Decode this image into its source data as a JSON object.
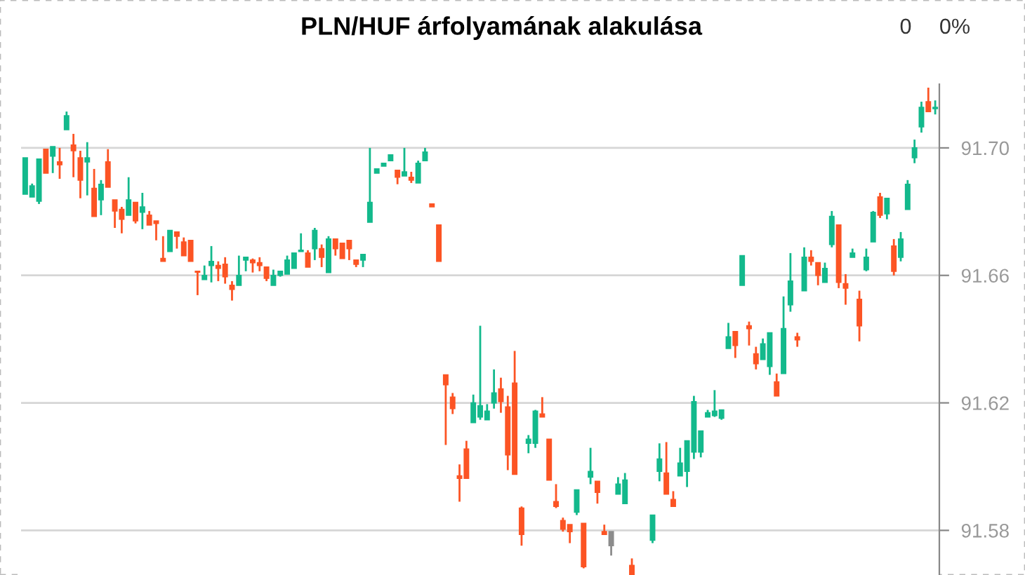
{
  "chart_data": {
    "type": "candlestick",
    "title": "PLN/HUF árfolyamának alakulása",
    "annotations": [
      "0",
      "0%"
    ],
    "categories": [
      null,
      null,
      null,
      null,
      null,
      null,
      null,
      null,
      null,
      null,
      null,
      null,
      null,
      null,
      null,
      null,
      null,
      null,
      null,
      null,
      null,
      null,
      null,
      null,
      null,
      null,
      null,
      null,
      null,
      null,
      null,
      null,
      null,
      null,
      null,
      null,
      null,
      null,
      null,
      null,
      null,
      null,
      null,
      null,
      null,
      null,
      null,
      null,
      null,
      null,
      null,
      null,
      null,
      null,
      null,
      null,
      null,
      null,
      null,
      null,
      null,
      null,
      null,
      null,
      null,
      null,
      null,
      null,
      null,
      null,
      null,
      null,
      null,
      null,
      null,
      null,
      null,
      null,
      null,
      null,
      null,
      null,
      null,
      null,
      null,
      null,
      null,
      null,
      null,
      null,
      null,
      null,
      null,
      null,
      null,
      null,
      null,
      null,
      null,
      null,
      null,
      null,
      null,
      null,
      null,
      null,
      null,
      null,
      null,
      null,
      null,
      null,
      null,
      null,
      null,
      null,
      null,
      null,
      null,
      null,
      null,
      null,
      null,
      null,
      null,
      null,
      null,
      null,
      null,
      null,
      null,
      null,
      null
    ],
    "ohlc": [
      [
        91.6855,
        91.6969,
        91.6855,
        91.6969
      ],
      [
        91.6846,
        91.6888,
        91.6846,
        91.6881
      ],
      [
        91.6833,
        91.6965,
        91.6824,
        91.6965
      ],
      [
        91.6996,
        91.6996,
        91.6921,
        91.6921
      ],
      [
        91.6974,
        91.7004,
        91.6921,
        91.7004
      ],
      [
        91.6956,
        91.7,
        91.6903,
        91.6947
      ],
      [
        91.7057,
        91.7114,
        91.7057,
        91.7101
      ],
      [
        91.7009,
        91.7044,
        91.6908,
        91.6991
      ],
      [
        91.6969,
        91.6991,
        91.6842,
        91.6899
      ],
      [
        91.6956,
        91.7018,
        91.6851,
        91.6969
      ],
      [
        91.6873,
        91.6934,
        91.6785,
        91.6785
      ],
      [
        91.6837,
        91.6899,
        91.6789,
        91.6886
      ],
      [
        91.6956,
        91.6996,
        91.6877,
        91.6877
      ],
      [
        91.6837,
        91.6837,
        91.6749,
        91.6802
      ],
      [
        91.6807,
        91.6815,
        91.6732,
        91.6776
      ],
      [
        91.6789,
        91.6908,
        91.6789,
        91.6837
      ],
      [
        91.6829,
        91.6829,
        91.6763,
        91.6771
      ],
      [
        91.6798,
        91.6859,
        91.6745,
        91.6815
      ],
      [
        91.6789,
        91.6802,
        91.6758,
        91.6758
      ],
      [
        91.6771,
        91.6771,
        91.671,
        91.6763
      ],
      [
        91.6653,
        91.6723,
        91.6644,
        91.6644
      ],
      [
        91.6675,
        91.6741,
        91.6675,
        91.6741
      ],
      [
        91.6736,
        91.6736,
        91.6684,
        91.6723
      ],
      [
        91.6705,
        91.6719,
        91.6662,
        91.6662
      ],
      [
        91.671,
        91.671,
        91.6644,
        91.6644
      ],
      [
        91.6613,
        91.6613,
        91.6538,
        91.661
      ],
      [
        91.6587,
        91.6631,
        91.6587,
        91.66
      ],
      [
        91.6631,
        91.6692,
        91.6578,
        91.6644
      ],
      [
        91.6631,
        91.6644,
        91.6582,
        91.6622
      ],
      [
        91.6635,
        91.6657,
        91.6574,
        91.6596
      ],
      [
        91.6569,
        91.6582,
        91.6521,
        91.6556
      ],
      [
        91.6569,
        91.6662,
        91.6569,
        91.66
      ],
      [
        91.6648,
        91.6657,
        91.6613,
        91.6657
      ],
      [
        91.6648,
        91.6653,
        91.6609,
        91.664
      ],
      [
        91.664,
        91.6657,
        91.6613,
        91.6631
      ],
      [
        91.6626,
        91.6626,
        91.6582,
        91.6591
      ],
      [
        91.6569,
        91.6618,
        91.6569,
        91.66
      ],
      [
        91.66,
        91.6613,
        91.6596,
        91.6613
      ],
      [
        91.6604,
        91.6662,
        91.6604,
        91.6648
      ],
      [
        91.6622,
        91.667,
        91.6622,
        91.667
      ],
      [
        91.6675,
        91.6732,
        91.6675,
        91.6679
      ],
      [
        91.667,
        91.6679,
        91.6626,
        91.6626
      ],
      [
        91.6684,
        91.6749,
        91.6648,
        91.6741
      ],
      [
        91.6684,
        91.6697,
        91.6626,
        91.6657
      ],
      [
        91.6609,
        91.6723,
        91.6609,
        91.6714
      ],
      [
        91.6714,
        91.6714,
        91.6662,
        91.6684
      ],
      [
        91.6701,
        91.6701,
        91.6653,
        91.6653
      ],
      [
        91.671,
        91.671,
        91.6648,
        91.6684
      ],
      [
        91.6648,
        91.6648,
        91.6626,
        91.6635
      ],
      [
        91.6648,
        91.6666,
        91.6626,
        91.6666
      ],
      [
        91.6767,
        91.7,
        91.6767,
        91.6829
      ],
      [
        91.6921,
        91.6934,
        91.6921,
        91.6934
      ],
      [
        91.6943,
        91.6952,
        91.6943,
        91.6952
      ],
      [
        91.696,
        91.6978,
        91.696,
        91.6978
      ],
      [
        91.693,
        91.693,
        91.6886,
        91.6908
      ],
      [
        91.6912,
        91.7,
        91.6912,
        91.6925
      ],
      [
        91.6908,
        91.6925,
        91.689,
        91.6899
      ],
      [
        91.689,
        91.696,
        91.689,
        91.6952
      ],
      [
        91.696,
        91.7,
        91.696,
        91.6987
      ],
      [
        91.6824,
        91.6824,
        91.6815,
        91.6815
      ],
      [
        91.6758,
        91.6758,
        91.6644,
        91.6644
      ],
      [
        91.6288,
        91.6288,
        91.6068,
        91.6257
      ],
      [
        91.6218,
        91.6231,
        91.6165,
        91.6182
      ],
      [
        91.5971,
        91.6007,
        91.589,
        91.5963
      ],
      [
        91.6055,
        91.6081,
        91.5963,
        91.5963
      ],
      [
        91.6138,
        91.6226,
        91.6138,
        91.62
      ],
      [
        91.6156,
        91.6442,
        91.6147,
        91.6191
      ],
      [
        91.6147,
        91.6196,
        91.6147,
        91.6174
      ],
      [
        91.62,
        91.6305,
        91.6182,
        91.6231
      ],
      [
        91.6244,
        91.6279,
        91.6169,
        91.6204
      ],
      [
        91.6187,
        91.6222,
        91.5989,
        91.6037
      ],
      [
        91.6262,
        91.6363,
        91.5976,
        91.5976
      ],
      [
        91.587,
        91.5875,
        91.5752,
        91.5787
      ],
      [
        91.6073,
        91.6099,
        91.6042,
        91.6086
      ],
      [
        91.6073,
        91.6178,
        91.6059,
        91.6174
      ],
      [
        91.6165,
        91.6218,
        91.6156,
        91.6156
      ],
      [
        91.6086,
        91.6086,
        91.5958,
        91.5958
      ],
      [
        91.589,
        91.5945,
        91.587,
        91.5875
      ],
      [
        91.5831,
        91.584,
        91.5796,
        91.5804
      ],
      [
        91.5818,
        91.5818,
        91.576,
        91.5796
      ],
      [
        91.5857,
        91.5927,
        91.5848,
        91.5927
      ],
      [
        91.5822,
        91.5822,
        91.5681,
        91.5686
      ],
      [
        91.5967,
        91.6059,
        91.5945,
        91.5985
      ],
      [
        91.5954,
        91.5954,
        91.5884,
        91.5919
      ],
      [
        91.5796,
        91.5818,
        91.5787,
        91.5787
      ],
      [
        91.5796,
        91.5796,
        91.5721,
        91.5752
      ],
      [
        91.5914,
        91.5967,
        91.5914,
        91.5945
      ],
      [
        91.5884,
        91.598,
        91.5884,
        91.5958
      ],
      [
        91.569,
        91.5712,
        91.5662,
        91.5662
      ],
      null,
      null,
      [
        91.5769,
        91.5848,
        91.576,
        91.5848
      ],
      [
        91.5985,
        91.6073,
        91.5954,
        91.6024
      ],
      [
        91.598,
        91.6077,
        91.5914,
        91.5914
      ],
      [
        91.5897,
        91.5923,
        91.5875,
        91.5875
      ],
      [
        91.5971,
        91.6059,
        91.5971,
        91.6011
      ],
      [
        91.5985,
        91.6081,
        91.5936,
        91.6081
      ],
      [
        91.6046,
        91.6222,
        91.6024,
        91.6204
      ],
      [
        91.6046,
        91.6112,
        91.6029,
        91.6112
      ],
      [
        91.6156,
        91.6178,
        91.6156,
        91.6169
      ],
      [
        91.616,
        91.624,
        91.6156,
        91.6174
      ],
      [
        91.6152,
        91.6178,
        91.6147,
        91.6178
      ],
      [
        91.6371,
        91.6451,
        91.6371,
        91.6407
      ],
      [
        91.6424,
        91.6424,
        91.6341,
        91.638
      ],
      [
        91.6569,
        91.6662,
        91.6569,
        91.6662
      ],
      [
        91.6442,
        91.6455,
        91.638,
        91.6433
      ],
      [
        91.6354,
        91.6376,
        91.6305,
        91.6323
      ],
      [
        91.6336,
        91.6402,
        91.6336,
        91.6385
      ],
      [
        91.6314,
        91.642,
        91.6288,
        91.642
      ],
      [
        91.6266,
        91.6292,
        91.6222,
        91.6222
      ],
      [
        91.6292,
        91.6534,
        91.6292,
        91.6433
      ],
      [
        91.6508,
        91.667,
        91.6486,
        91.6582
      ],
      [
        91.6407,
        91.642,
        91.6376,
        91.6398
      ],
      [
        91.6552,
        91.6688,
        91.6552,
        91.6657
      ],
      [
        91.6657,
        91.6679,
        91.6631,
        91.6644
      ],
      [
        91.664,
        91.664,
        91.6569,
        91.66
      ],
      [
        91.6578,
        91.664,
        91.6578,
        91.6622
      ],
      [
        91.6697,
        91.6802,
        91.6688,
        91.6785
      ],
      [
        91.6758,
        91.6758,
        91.656,
        91.6578
      ],
      [
        91.6574,
        91.6604,
        91.6508,
        91.656
      ],
      [
        91.6657,
        91.6684,
        91.6657,
        91.667
      ],
      [
        91.6525,
        91.6552,
        91.6393,
        91.6442
      ],
      [
        91.6618,
        91.6684,
        91.6613,
        91.6657
      ],
      [
        91.6705,
        91.6802,
        91.6705,
        91.6798
      ],
      [
        91.6846,
        91.6859,
        91.678,
        91.6789
      ],
      [
        91.6793,
        91.6842,
        91.6776,
        91.6842
      ],
      [
        91.6692,
        91.6714,
        91.66,
        91.6613
      ],
      [
        91.6657,
        91.6736,
        91.6644,
        91.6714
      ],
      [
        91.6807,
        91.6899,
        91.6807,
        91.6886
      ],
      [
        91.6969,
        91.7026,
        91.6952,
        91.7
      ],
      [
        91.7066,
        91.7145,
        91.7048,
        91.7127
      ],
      [
        91.7145,
        91.7189,
        91.7114,
        91.7114
      ],
      [
        91.7123,
        91.7149,
        91.7105,
        91.7127
      ]
    ],
    "colors": [
      "#13b98c",
      "#13b98c",
      "#13b98c",
      "#fc5424",
      "#13b98c",
      "#fc5424",
      "#13b98c",
      "#fc5424",
      "#fc5424",
      "#13b98c",
      "#fc5424",
      "#13b98c",
      "#fc5424",
      "#fc5424",
      "#fc5424",
      "#13b98c",
      "#fc5424",
      "#13b98c",
      "#fc5424",
      "#fc5424",
      "#fc5424",
      "#13b98c",
      "#fc5424",
      "#fc5424",
      "#fc5424",
      "#fc5424",
      "#13b98c",
      "#13b98c",
      "#fc5424",
      "#fc5424",
      "#fc5424",
      "#13b98c",
      "#13b98c",
      "#fc5424",
      "#fc5424",
      "#fc5424",
      "#13b98c",
      "#13b98c",
      "#13b98c",
      "#13b98c",
      "#13b98c",
      "#fc5424",
      "#13b98c",
      "#fc5424",
      "#13b98c",
      "#fc5424",
      "#fc5424",
      "#fc5424",
      "#fc5424",
      "#13b98c",
      "#13b98c",
      "#13b98c",
      "#13b98c",
      "#13b98c",
      "#fc5424",
      "#13b98c",
      "#fc5424",
      "#13b98c",
      "#13b98c",
      "#fc5424",
      "#fc5424",
      "#fc5424",
      "#fc5424",
      "#fc5424",
      "#fc5424",
      "#13b98c",
      "#13b98c",
      "#13b98c",
      "#13b98c",
      "#fc5424",
      "#fc5424",
      "#fc5424",
      "#fc5424",
      "#13b98c",
      "#13b98c",
      "#fc5424",
      "#fc5424",
      "#fc5424",
      "#fc5424",
      "#fc5424",
      "#13b98c",
      "#fc5424",
      "#13b98c",
      "#fc5424",
      "#fc5424",
      "#8c8c8c",
      "#13b98c",
      "#13b98c",
      "#fc5424",
      null,
      null,
      "#13b98c",
      "#13b98c",
      "#fc5424",
      "#fc5424",
      "#13b98c",
      "#13b98c",
      "#13b98c",
      "#13b98c",
      "#13b98c",
      "#13b98c",
      "#13b98c",
      "#13b98c",
      "#fc5424",
      "#13b98c",
      "#fc5424",
      "#fc5424",
      "#13b98c",
      "#13b98c",
      "#fc5424",
      "#13b98c",
      "#13b98c",
      "#fc5424",
      "#13b98c",
      "#fc5424",
      "#fc5424",
      "#13b98c",
      "#13b98c",
      "#fc5424",
      "#fc5424",
      "#13b98c",
      "#fc5424",
      "#13b98c",
      "#13b98c",
      "#fc5424",
      "#13b98c",
      "#fc5424",
      "#13b98c",
      "#13b98c",
      "#13b98c",
      "#13b98c",
      "#fc5424",
      "#13b98c"
    ],
    "ylim": [
      91.566,
      91.72
    ],
    "yticks": [
      91.58,
      91.62,
      91.66,
      {
        "value": 91.7,
        "label": "91.70"
      }
    ],
    "grid": "y",
    "tick_labels": "y"
  }
}
